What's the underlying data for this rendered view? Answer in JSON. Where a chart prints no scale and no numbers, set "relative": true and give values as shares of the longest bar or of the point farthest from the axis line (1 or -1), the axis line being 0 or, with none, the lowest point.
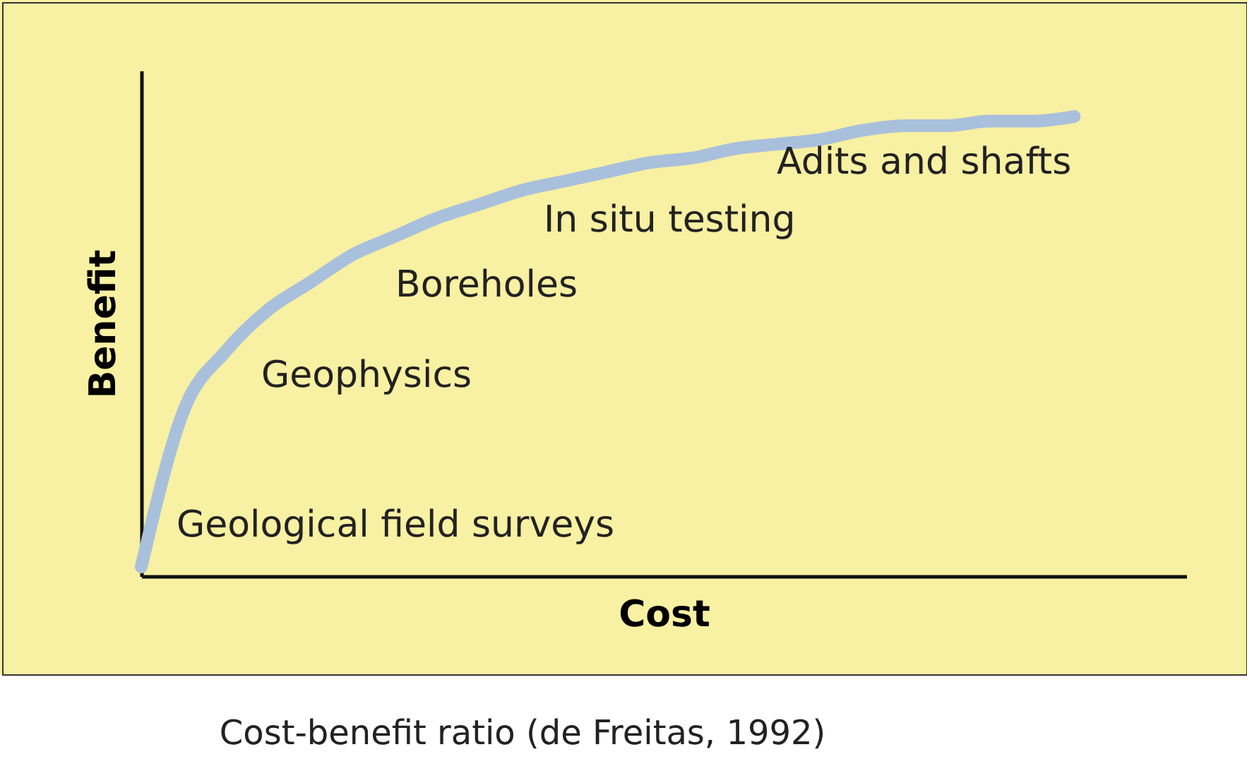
{
  "chart_data": {
    "type": "line",
    "relative": true,
    "xlabel": "Cost",
    "ylabel": "Benefit",
    "tick_labels": false,
    "grid": false,
    "legend": false,
    "marker": "none",
    "line_style": "solid",
    "categories": [
      null,
      null,
      null,
      null,
      null,
      null,
      null,
      null,
      null,
      null,
      null,
      null,
      null,
      null,
      null,
      null,
      null,
      null,
      null,
      null,
      null,
      null,
      null
    ],
    "series": [
      {
        "color": "#a9c0dc",
        "values": [
          0.02,
          0.36,
          0.49,
          0.58,
          0.64,
          0.7,
          0.74,
          0.78,
          0.81,
          0.84,
          0.86,
          0.88,
          0.9,
          0.91,
          0.93,
          0.94,
          0.95,
          0.97,
          0.98,
          0.98,
          0.99,
          0.99,
          1
        ]
      }
    ],
    "annotations": [
      "Geological field surveys",
      "Geophysics",
      "Boreholes",
      "In situ testing",
      "Adits and shafts",
      "Cost-benefit ratio (de Freitas, 1992)"
    ]
  }
}
